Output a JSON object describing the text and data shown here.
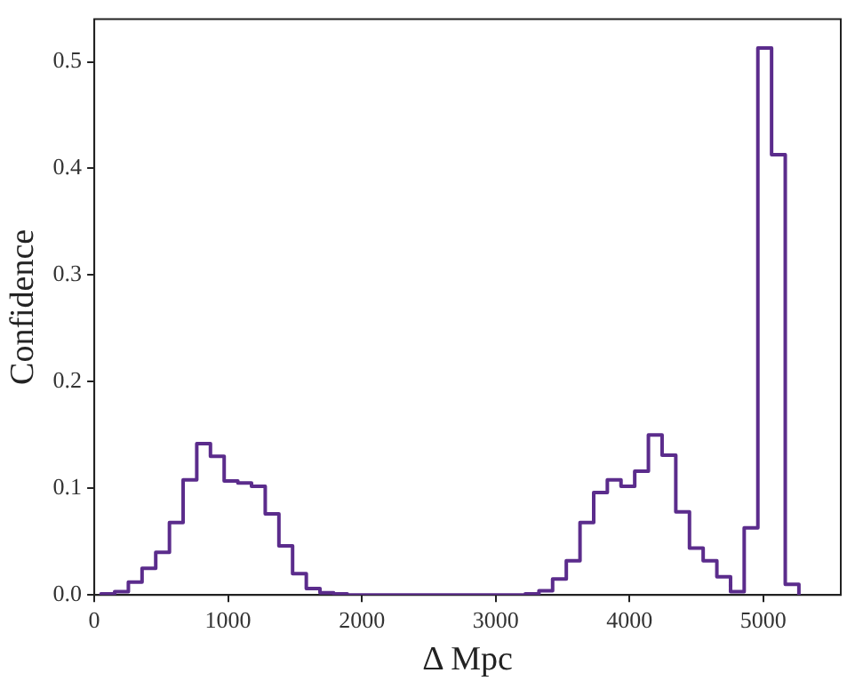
{
  "chart_data": {
    "type": "histogram",
    "xlabel": "Δ Mpc",
    "ylabel": "Confidence",
    "color": "#5b2c8c",
    "bins": [
      50,
      152,
      255,
      357,
      459,
      562,
      664,
      766,
      868,
      971,
      1073,
      1175,
      1278,
      1380,
      1482,
      1585,
      1687,
      1789,
      1891,
      1994,
      2096,
      2198,
      2301,
      2403,
      2505,
      2608,
      2710,
      2812,
      2914,
      3017,
      3119,
      3221,
      3324,
      3426,
      3528,
      3631,
      3733,
      3835,
      3937,
      4040,
      4142,
      4244,
      4347,
      4449,
      4551,
      4654,
      4756,
      4858,
      4960,
      5063,
      5165,
      5267
    ],
    "values": [
      0.001,
      0.003,
      0.012,
      0.025,
      0.04,
      0.068,
      0.108,
      0.142,
      0.13,
      0.107,
      0.105,
      0.102,
      0.076,
      0.046,
      0.02,
      0.006,
      0.002,
      0.001,
      0,
      0,
      0,
      0,
      0,
      0,
      0,
      0,
      0,
      0,
      0,
      0,
      0,
      0.001,
      0.004,
      0.015,
      0.032,
      0.068,
      0.096,
      0.108,
      0.102,
      0.116,
      0.15,
      0.131,
      0.078,
      0.044,
      0.032,
      0.017,
      0.003,
      0.063,
      0.513,
      0.413,
      0.01
    ],
    "xlim": [
      0,
      5580
    ],
    "xticks": [
      0,
      1000,
      2000,
      3000,
      4000,
      5000
    ],
    "ylim": [
      0,
      0.54
    ],
    "yticks": [
      {
        "value": 0,
        "label": "0.0"
      },
      {
        "value": 0.1,
        "label": "0.1"
      },
      {
        "value": 0.2,
        "label": "0.2"
      },
      {
        "value": 0.3,
        "label": "0.3"
      },
      {
        "value": 0.4,
        "label": "0.4"
      },
      {
        "value": 0.5,
        "label": "0.5"
      }
    ],
    "grid": false
  }
}
